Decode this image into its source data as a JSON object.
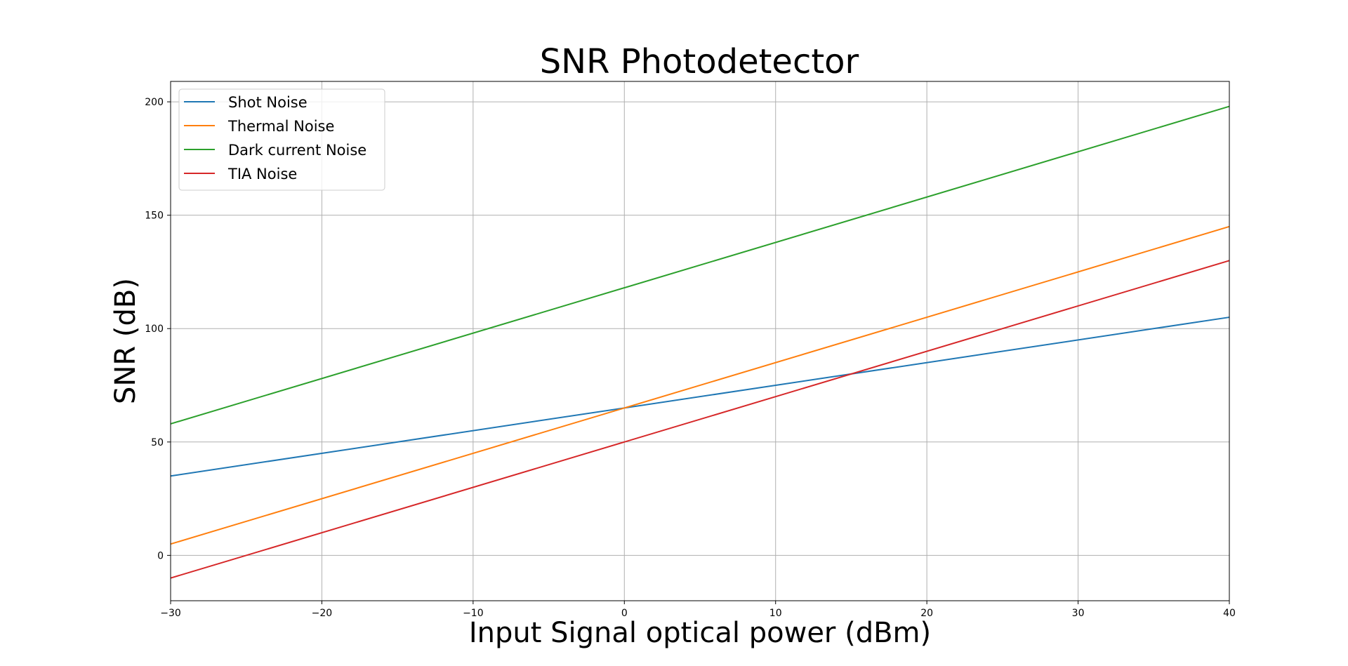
{
  "chart_data": {
    "type": "line",
    "title": "SNR Photodetector",
    "xlabel": "Input Signal optical power (dBm)",
    "ylabel": "SNR (dB)",
    "xlim": [
      -30,
      40
    ],
    "ylim": [
      -20,
      209
    ],
    "xticks": [
      -30,
      -20,
      -10,
      0,
      10,
      20,
      30,
      40
    ],
    "xtick_labels": [
      "−30",
      "−20",
      "−10",
      "0",
      "10",
      "20",
      "30",
      "40"
    ],
    "yticks": [
      0,
      50,
      100,
      150,
      200
    ],
    "ytick_labels": [
      "0",
      "50",
      "100",
      "150",
      "200"
    ],
    "grid": true,
    "legend_position": "top-left",
    "series": [
      {
        "name": "Shot Noise",
        "color": "#1f77b4",
        "x": [
          -30,
          40
        ],
        "y": [
          35,
          105
        ]
      },
      {
        "name": "Thermal Noise",
        "color": "#ff7f0e",
        "x": [
          -30,
          40
        ],
        "y": [
          5,
          145
        ]
      },
      {
        "name": "Dark current Noise",
        "color": "#2ca02c",
        "x": [
          -30,
          40
        ],
        "y": [
          58,
          198
        ]
      },
      {
        "name": "TIA Noise",
        "color": "#d62728",
        "x": [
          -30,
          40
        ],
        "y": [
          -10,
          130
        ]
      }
    ]
  }
}
